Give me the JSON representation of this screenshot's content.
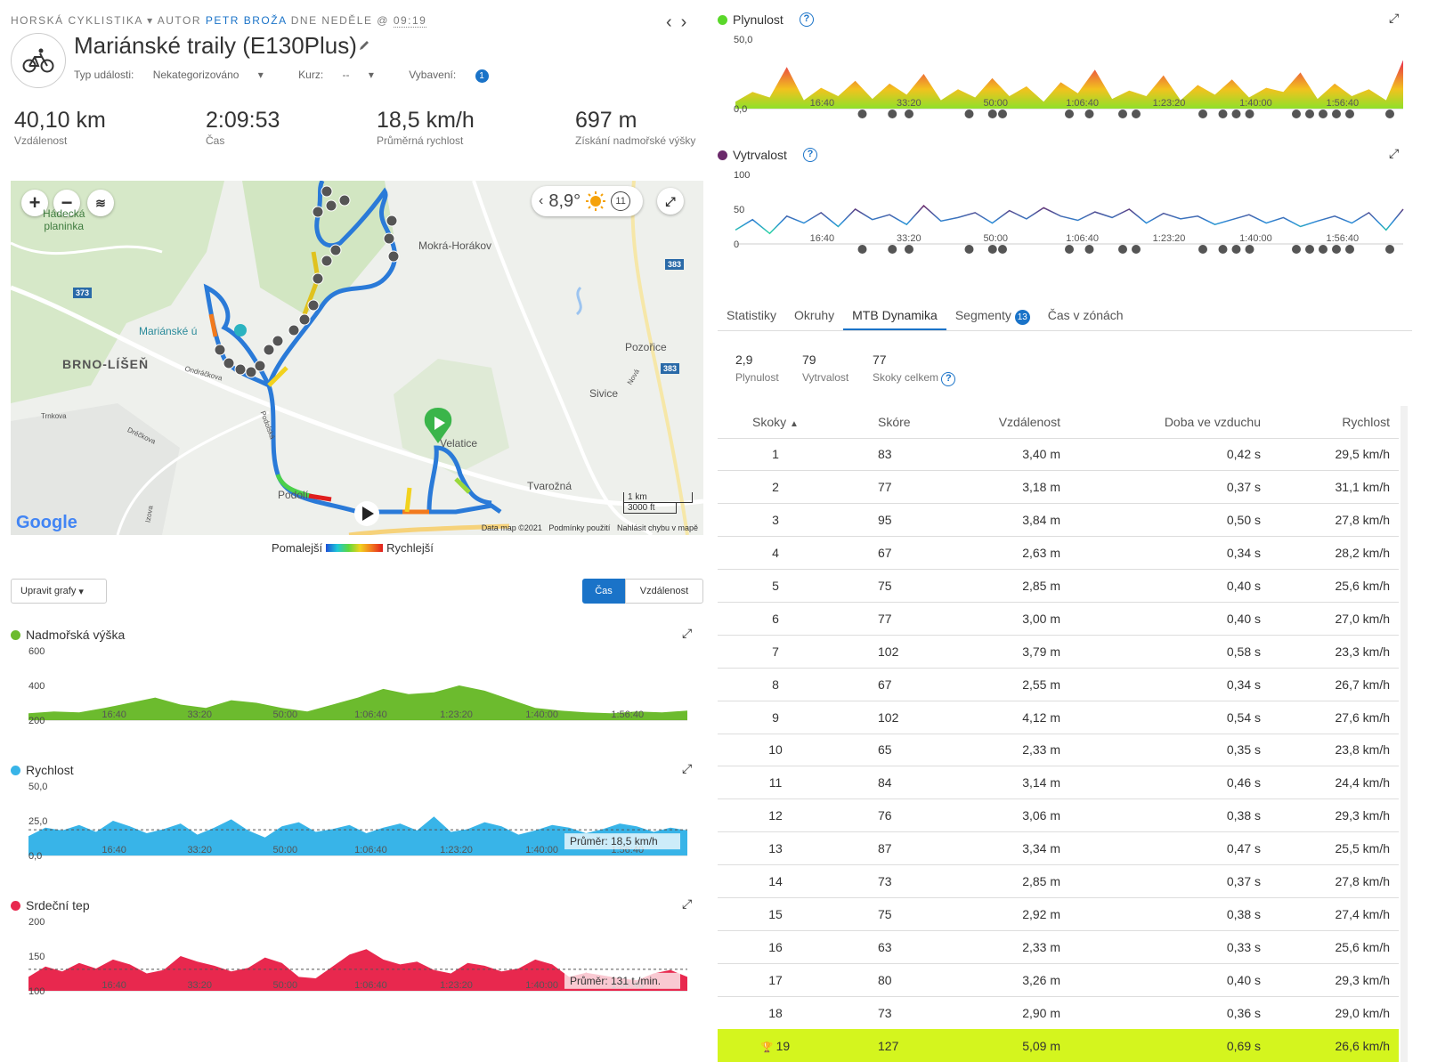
{
  "header": {
    "activity_type": "HORSKÁ CYKLISTIKA",
    "author_prefix": "AUTOR",
    "author": "PETR BROŽA",
    "date_text": "DNE NEDĚLE @",
    "time": "09:19",
    "title": "Mariánské traily (E130Plus)",
    "event_type_label": "Typ události:",
    "event_type_value": "Nekategorizováno",
    "course_label": "Kurz:",
    "course_value": "--",
    "gear_label": "Vybavení:",
    "gear_count": "1"
  },
  "stats": [
    {
      "value": "40,10 km",
      "label": "Vzdálenost"
    },
    {
      "value": "2:09:53",
      "label": "Čas"
    },
    {
      "value": "18,5 km/h",
      "label": "Průměrná rychlost"
    },
    {
      "value": "697 m",
      "label": "Získání nadmořské výšky"
    }
  ],
  "map": {
    "temperature": "8,9°",
    "wind": "11",
    "places": {
      "hadecka": "Hádecká\nplaninka",
      "mokra": "Mokrá-Horákov",
      "marianske": "Mariánské ú",
      "brno": "BRNO-LÍŠEŇ",
      "pozorice": "Pozořice",
      "sivice": "Sivice",
      "velatice": "Velatice",
      "tvarozna": "Tvarožná",
      "podoli": "Podolí",
      "ondrackova": "Ondráčkova",
      "trnkova": "Trnkova",
      "drckova": "Dréčkova",
      "podolska": "Podolská",
      "izova": "Izova",
      "nova": "Nová"
    },
    "road_shields": [
      "373",
      "383",
      "383"
    ],
    "scale_km": "1 km",
    "scale_ft": "3000 ft",
    "data_credit": "Data map ©2021",
    "terms": "Podmínky použití",
    "report": "Nahlásit chybu v mapě",
    "brand": "Google"
  },
  "legend": {
    "slower": "Pomalejší",
    "faster": "Rychlejší"
  },
  "controls": {
    "edit_charts": "Upravit grafy",
    "time": "Čas",
    "distance": "Vzdálenost"
  },
  "time_ticks": [
    "16:40",
    "33:20",
    "50:00",
    "1:06:40",
    "1:23:20",
    "1:40:00",
    "1:56:40"
  ],
  "charts": {
    "elevation": {
      "title": "Nadmořská výška",
      "color": "#6cbb2e",
      "ticks": [
        "600",
        "400",
        "200"
      ]
    },
    "speed": {
      "title": "Rychlost",
      "color": "#38b4e8",
      "ticks": [
        "50,0",
        "25,0",
        "0,0"
      ],
      "avg_label": "Průměr: 18,5 km/h"
    },
    "heart": {
      "title": "Srdeční tep",
      "color": "#e8284e",
      "ticks": [
        "200",
        "150",
        "100"
      ],
      "avg_label": "Průměr: 131 t./min."
    },
    "flow": {
      "title": "Plynulost",
      "color": "#5ad82a",
      "ticks": [
        "50,0",
        "0,0"
      ]
    },
    "grit": {
      "title": "Vytrvalost",
      "color": "#6b2a6b",
      "ticks": [
        "100",
        "50",
        "0"
      ]
    }
  },
  "chart_data": [
    {
      "type": "area",
      "title": "Nadmořská výška",
      "x_ticks": [
        "16:40",
        "33:20",
        "50:00",
        "1:06:40",
        "1:23:20",
        "1:40:00",
        "1:56:40"
      ],
      "ylim": [
        200,
        600
      ],
      "x": [
        0,
        5,
        10,
        15,
        20,
        25,
        30,
        35,
        40,
        45,
        50,
        55,
        60,
        65,
        70,
        75,
        80,
        85,
        90,
        95,
        100,
        105,
        110,
        115,
        120,
        125,
        130
      ],
      "values": [
        240,
        250,
        245,
        270,
        300,
        330,
        290,
        270,
        315,
        300,
        270,
        250,
        290,
        330,
        380,
        350,
        360,
        400,
        370,
        320,
        270,
        255,
        245,
        240,
        250,
        245,
        255
      ]
    },
    {
      "type": "area",
      "title": "Rychlost",
      "ylim": [
        0,
        50
      ],
      "average": 18.5,
      "values": [
        14,
        20,
        18,
        22,
        17,
        25,
        21,
        16,
        19,
        23,
        15,
        20,
        26,
        18,
        13,
        21,
        24,
        17,
        19,
        22,
        16,
        20,
        23,
        18,
        28,
        17,
        19,
        24,
        21,
        15,
        18,
        22,
        20,
        16,
        19,
        23,
        21,
        17,
        20,
        18
      ]
    },
    {
      "type": "area",
      "title": "Srdeční tep",
      "ylim": [
        100,
        200
      ],
      "average": 131,
      "values": [
        120,
        135,
        128,
        140,
        132,
        145,
        138,
        125,
        130,
        150,
        142,
        136,
        128,
        133,
        148,
        140,
        120,
        118,
        135,
        152,
        160,
        145,
        138,
        142,
        130,
        125,
        140,
        136,
        128,
        132,
        145,
        138,
        120,
        126,
        122,
        118,
        115,
        125,
        130,
        120
      ]
    },
    {
      "type": "area",
      "title": "Plynulost",
      "ylim": [
        0,
        50
      ],
      "values": [
        5,
        12,
        8,
        30,
        6,
        15,
        9,
        20,
        7,
        18,
        10,
        25,
        6,
        14,
        8,
        22,
        9,
        16,
        5,
        19,
        11,
        28,
        7,
        13,
        9,
        24,
        6,
        17,
        10,
        21,
        8,
        15,
        12,
        26,
        7,
        18,
        9,
        14,
        6,
        35
      ]
    },
    {
      "type": "line",
      "title": "Vytrvalost",
      "ylim": [
        0,
        100
      ],
      "values": [
        20,
        35,
        15,
        40,
        30,
        45,
        25,
        50,
        35,
        42,
        28,
        55,
        33,
        38,
        45,
        30,
        48,
        36,
        52,
        40,
        34,
        46,
        38,
        50,
        30,
        44,
        36,
        40,
        28,
        35,
        42,
        30,
        38,
        25,
        33,
        40,
        30,
        45,
        20,
        50
      ]
    }
  ],
  "tabs": [
    {
      "label": "Statistiky"
    },
    {
      "label": "Okruhy"
    },
    {
      "label": "MTB Dynamika"
    },
    {
      "label": "Segmenty",
      "badge": "13"
    },
    {
      "label": "Čas v zónách"
    }
  ],
  "mtb_summary": [
    {
      "value": "2,9",
      "label": "Plynulost"
    },
    {
      "value": "79",
      "label": "Vytrvalost"
    },
    {
      "value": "77",
      "label": "Skoky celkem"
    }
  ],
  "jumps_table": {
    "columns": [
      "Skoky",
      "Skóre",
      "Vzdálenost",
      "Doba ve vzduchu",
      "Rychlost"
    ],
    "rows": [
      [
        "1",
        "83",
        "3,40 m",
        "0,42 s",
        "29,5 km/h"
      ],
      [
        "2",
        "77",
        "3,18 m",
        "0,37 s",
        "31,1 km/h"
      ],
      [
        "3",
        "95",
        "3,84 m",
        "0,50 s",
        "27,8 km/h"
      ],
      [
        "4",
        "67",
        "2,63 m",
        "0,34 s",
        "28,2 km/h"
      ],
      [
        "5",
        "75",
        "2,85 m",
        "0,40 s",
        "25,6 km/h"
      ],
      [
        "6",
        "77",
        "3,00 m",
        "0,40 s",
        "27,0 km/h"
      ],
      [
        "7",
        "102",
        "3,79 m",
        "0,58 s",
        "23,3 km/h"
      ],
      [
        "8",
        "67",
        "2,55 m",
        "0,34 s",
        "26,7 km/h"
      ],
      [
        "9",
        "102",
        "4,12 m",
        "0,54 s",
        "27,6 km/h"
      ],
      [
        "10",
        "65",
        "2,33 m",
        "0,35 s",
        "23,8 km/h"
      ],
      [
        "11",
        "84",
        "3,14 m",
        "0,46 s",
        "24,4 km/h"
      ],
      [
        "12",
        "76",
        "3,06 m",
        "0,38 s",
        "29,3 km/h"
      ],
      [
        "13",
        "87",
        "3,34 m",
        "0,47 s",
        "25,5 km/h"
      ],
      [
        "14",
        "73",
        "2,85 m",
        "0,37 s",
        "27,8 km/h"
      ],
      [
        "15",
        "75",
        "2,92 m",
        "0,38 s",
        "27,4 km/h"
      ],
      [
        "16",
        "63",
        "2,33 m",
        "0,33 s",
        "25,6 km/h"
      ],
      [
        "17",
        "80",
        "3,26 m",
        "0,40 s",
        "29,3 km/h"
      ],
      [
        "18",
        "73",
        "2,90 m",
        "0,36 s",
        "29,0 km/h"
      ],
      [
        "19",
        "127",
        "5,09 m",
        "0,69 s",
        "26,6 km/h"
      ]
    ],
    "best_row": 18,
    "colors": {
      "highlight": "#d4f51e"
    }
  }
}
